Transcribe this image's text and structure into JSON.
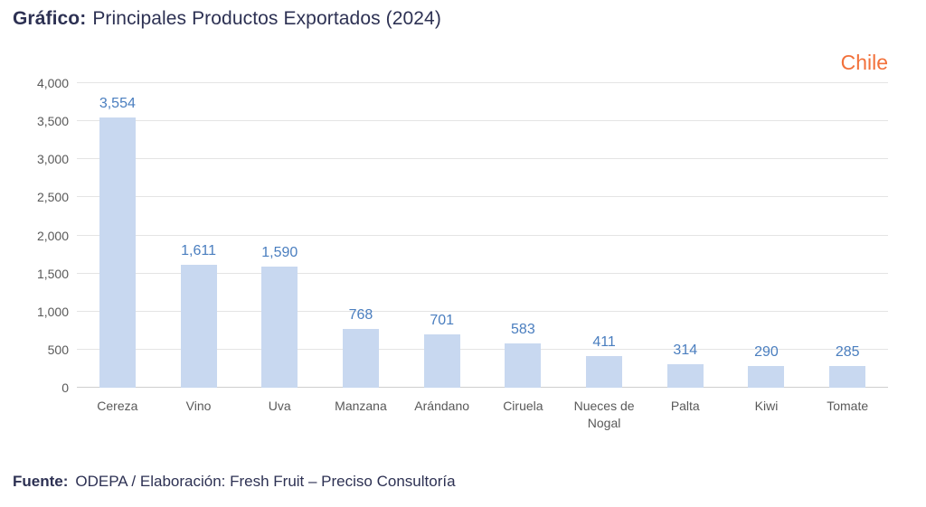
{
  "title": {
    "prefix": "Gráfico:",
    "text": "Principales Productos Exportados (2024)"
  },
  "country_label": "Chile",
  "footer": {
    "prefix": "Fuente:",
    "text": "ODEPA / Elaboración: Fresh Fruit – Preciso Consultoría"
  },
  "colors": {
    "title_navy": "#2d3153",
    "accent_orange": "#f2713b",
    "bar_fill": "#c8d8f0",
    "value_label_blue": "#4a7ebf",
    "axis_text_gray": "#595959",
    "gridline_gray": "#e4e4e4"
  },
  "chart_data": {
    "type": "bar",
    "title": "Principales Productos Exportados (2024)",
    "categories": [
      "Cereza",
      "Vino",
      "Uva",
      "Manzana",
      "Arándano",
      "Ciruela",
      "Nueces de Nogal",
      "Palta",
      "Kiwi",
      "Tomate"
    ],
    "values": [
      3554,
      1611,
      1590,
      768,
      701,
      583,
      411,
      314,
      290,
      285
    ],
    "value_labels": [
      "3,554",
      "1,611",
      "1,590",
      "768",
      "701",
      "583",
      "411",
      "314",
      "290",
      "285"
    ],
    "xlabel": "",
    "ylabel": "",
    "ylim": [
      0,
      4000
    ],
    "ytick_step": 500,
    "ytick_labels": [
      "0",
      "500",
      "1,000",
      "1,500",
      "2,000",
      "2,500",
      "3,000",
      "3,500",
      "4,000"
    ],
    "grid": true,
    "legend_position": "none",
    "annotation": "Chile"
  }
}
